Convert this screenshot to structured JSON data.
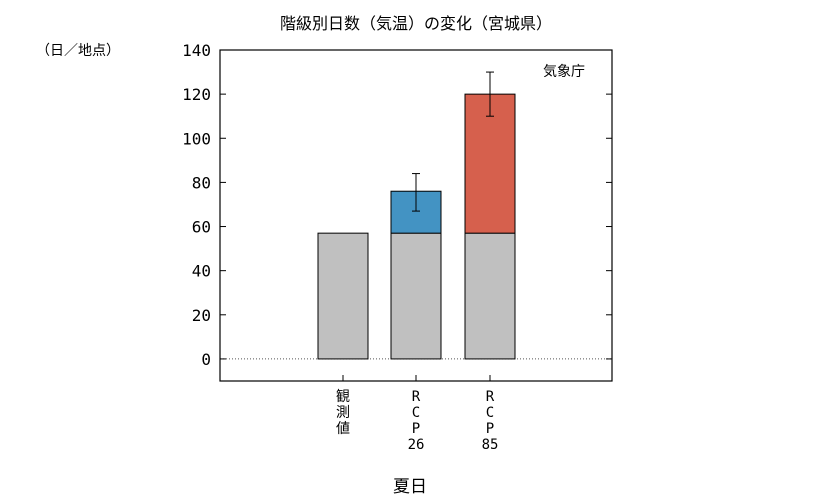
{
  "chart_data": {
    "type": "bar",
    "title": "階級別日数（気温）の変化（宮城県）",
    "ylabel": "（日／地点）",
    "xlabel": "夏日",
    "source": "気象庁",
    "ylim": [
      -10,
      140
    ],
    "yticks": [
      0,
      20,
      40,
      60,
      80,
      100,
      120,
      140
    ],
    "categories": [
      {
        "lines": [
          "観",
          "測",
          "値"
        ]
      },
      {
        "lines": [
          "R",
          "C",
          "P",
          "26"
        ]
      },
      {
        "lines": [
          "R",
          "C",
          "P",
          "85"
        ]
      }
    ],
    "series": [
      {
        "values": [
          57,
          57,
          57
        ],
        "color": "#c0c0c0"
      },
      {
        "values": [
          0,
          19,
          63
        ],
        "colors": [
          "#c0c0c0",
          "#4393c3",
          "#d6604d"
        ]
      }
    ],
    "error_bars": [
      null,
      {
        "center": 76,
        "low": 67,
        "high": 84
      },
      {
        "center": 120,
        "low": 110,
        "high": 130
      }
    ],
    "grid": false,
    "zero_line": "dotted"
  }
}
